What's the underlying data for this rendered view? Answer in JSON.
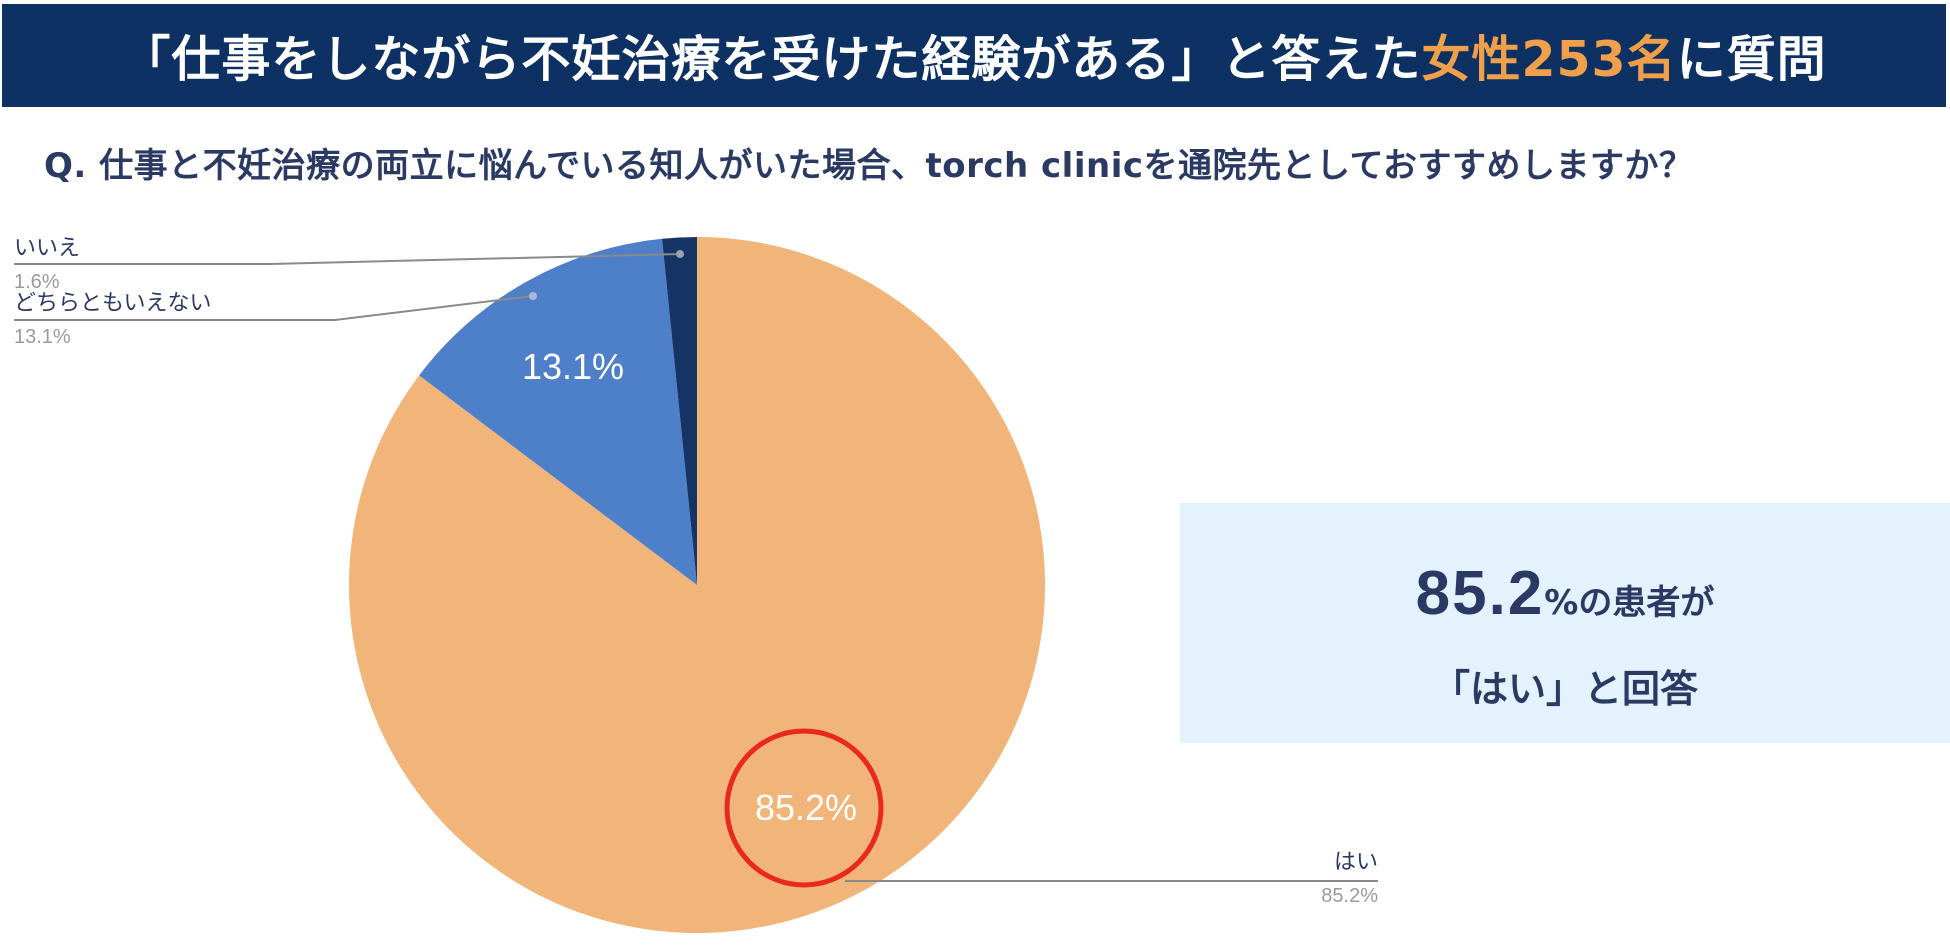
{
  "header": {
    "title_pre": "「仕事をしながら不妊治療を受けた経験がある」と答えた",
    "title_highlight": "女性253名",
    "title_post": "に質問",
    "highlight_color": "#f0a04b",
    "bg_color": "#0d3163"
  },
  "question": "Q. 仕事と不妊治療の両立に悩んでいる知人がいた場合、torch clinicを通院先としておすすめしますか？",
  "chart_data": {
    "type": "pie",
    "start_angle_deg": 0,
    "direction": "clockwise",
    "slices": [
      {
        "label": "はい",
        "value": 85.2,
        "display": "85.2%",
        "color": "#f2b579",
        "inner_label": "85.2%"
      },
      {
        "label": "どちらともいえない",
        "value": 13.1,
        "display": "13.1%",
        "color": "#4d80c8",
        "inner_label": "13.1%"
      },
      {
        "label": "いいえ",
        "value": 1.6,
        "display": "1.6%",
        "color": "#163566",
        "inner_label": ""
      }
    ],
    "highlight": "85.2%",
    "highlight_color": "#e8291c"
  },
  "callout": {
    "big_value": "85.2",
    "line1_rest": "%の患者が",
    "line2": "「はい」と回答"
  }
}
